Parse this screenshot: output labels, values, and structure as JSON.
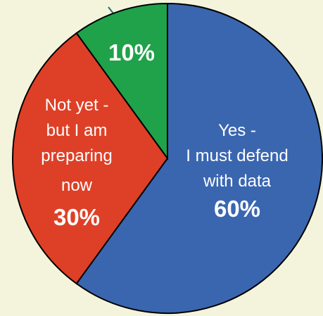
{
  "chart_data": {
    "type": "pie",
    "title": "",
    "top_caption_partial": "g         g",
    "slices": [
      {
        "label_lines": [
          "Yes -",
          "I must defend",
          "with data"
        ],
        "percent_label": "60%",
        "value": 60,
        "color": "#3a66b0"
      },
      {
        "label_lines": [
          "Not yet -",
          "but I am",
          "preparing",
          "now"
        ],
        "percent_label": "30%",
        "value": 30,
        "color": "#de4027"
      },
      {
        "label_lines": [],
        "percent_label": "10%",
        "value": 10,
        "color": "#1fa24a"
      }
    ]
  }
}
